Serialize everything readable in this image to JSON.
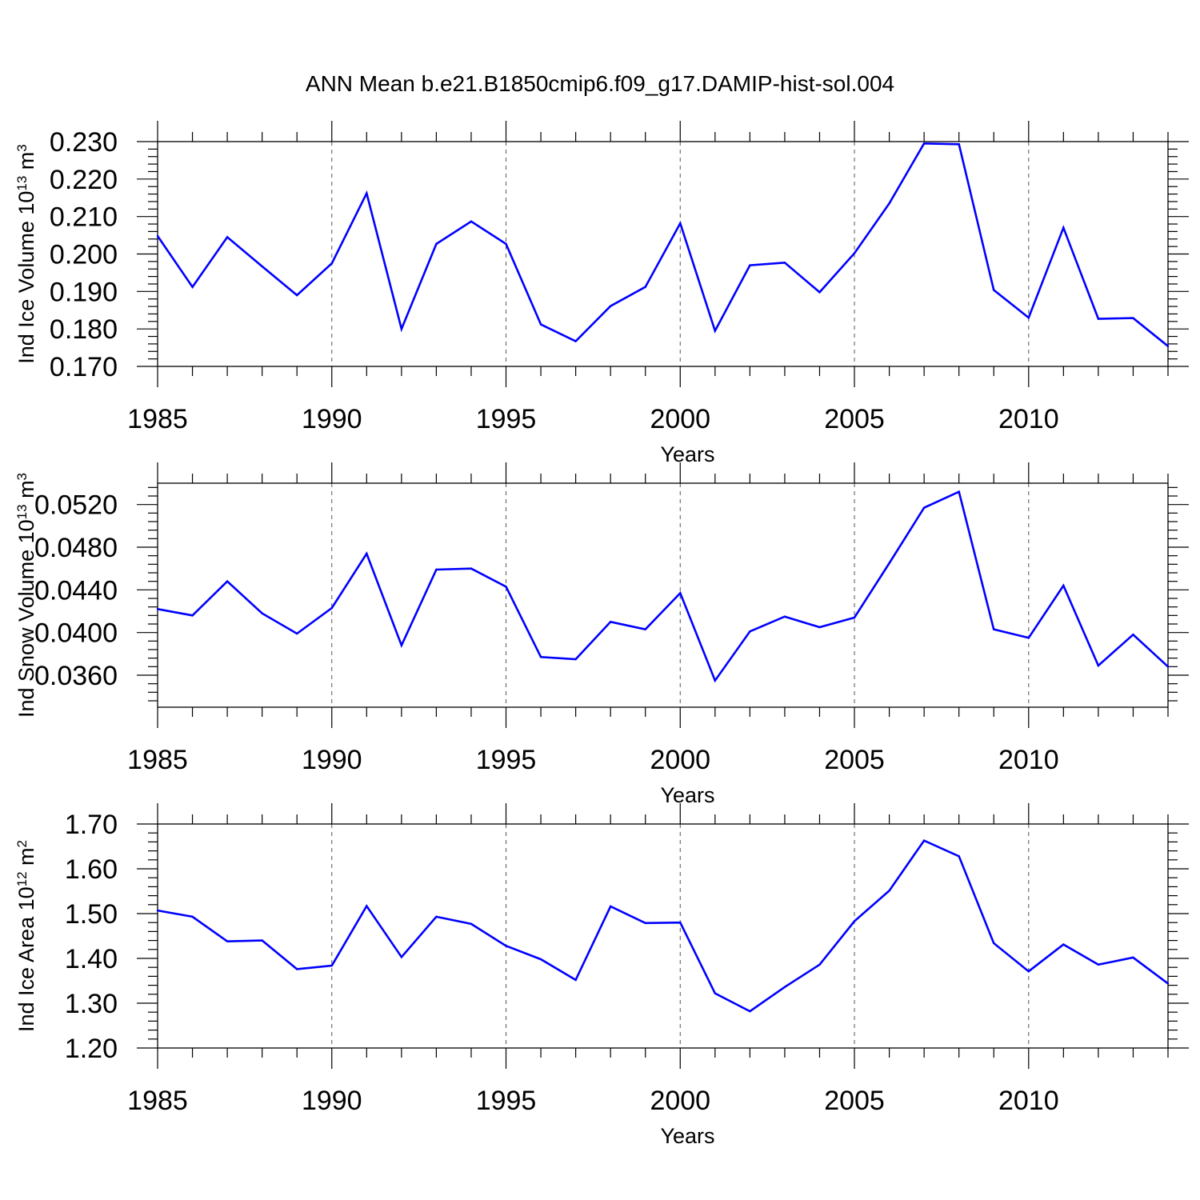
{
  "figure_title": "ANN Mean b.e21.B1850cmip6.f09_g17.DAMIP-hist-sol.004",
  "colors": {
    "series": "#0000ff",
    "axis": "#000000",
    "grid": "#555555"
  },
  "chart_data": [
    {
      "type": "line",
      "title": "ANN Mean b.e21.B1850cmip6.f09_g17.DAMIP-hist-sol.004",
      "xlabel": "Years",
      "ylabel": {
        "text": "Ind Ice Volume 10",
        "exp": "13",
        "unit": " m",
        "unit_exp": "3"
      },
      "x": [
        1985,
        1986,
        1987,
        1988,
        1989,
        1990,
        1991,
        1992,
        1993,
        1994,
        1995,
        1996,
        1997,
        1998,
        1999,
        2000,
        2001,
        2002,
        2003,
        2004,
        2005,
        2006,
        2007,
        2008,
        2009,
        2010,
        2011,
        2012,
        2013,
        2014
      ],
      "values": [
        0.2048,
        0.1912,
        0.2045,
        0.1967,
        0.189,
        0.1975,
        0.2162,
        0.18,
        0.2027,
        0.2087,
        0.2027,
        0.1812,
        0.1767,
        0.1861,
        0.1912,
        0.2082,
        0.1795,
        0.197,
        0.1977,
        0.1898,
        0.2002,
        0.2135,
        0.2295,
        0.2293,
        0.1904,
        0.183,
        0.207,
        0.1827,
        0.1829,
        0.1754
      ],
      "xlim": [
        1985,
        2014
      ],
      "ylim": [
        0.17,
        0.23
      ],
      "xticks": [
        1985,
        1990,
        1995,
        2000,
        2005,
        2010
      ],
      "yticks": [
        0.17,
        0.18,
        0.19,
        0.2,
        0.21,
        0.22,
        0.23
      ],
      "ytick_labels": [
        "0.170",
        "0.180",
        "0.190",
        "0.200",
        "0.210",
        "0.220",
        "0.230"
      ],
      "grid": "vertical dashed at major x ticks"
    },
    {
      "type": "line",
      "xlabel": "Years",
      "ylabel": {
        "text": "Ind Snow Volume 10",
        "exp": "13",
        "unit": " m",
        "unit_exp": "3"
      },
      "x": [
        1985,
        1986,
        1987,
        1988,
        1989,
        1990,
        1991,
        1992,
        1993,
        1994,
        1995,
        1996,
        1997,
        1998,
        1999,
        2000,
        2001,
        2002,
        2003,
        2004,
        2005,
        2006,
        2007,
        2008,
        2009,
        2010,
        2011,
        2012,
        2013,
        2014
      ],
      "values": [
        0.0422,
        0.0416,
        0.0448,
        0.0418,
        0.0399,
        0.0423,
        0.0474,
        0.0388,
        0.0459,
        0.046,
        0.0443,
        0.0377,
        0.0375,
        0.041,
        0.0403,
        0.0437,
        0.0355,
        0.0401,
        0.0415,
        0.0405,
        0.0414,
        0.0465,
        0.0517,
        0.0532,
        0.0403,
        0.0395,
        0.0444,
        0.0369,
        0.0398,
        0.0368
      ],
      "xlim": [
        1985,
        2014
      ],
      "ylim": [
        0.033,
        0.054
      ],
      "xticks": [
        1985,
        1990,
        1995,
        2000,
        2005,
        2010
      ],
      "yticks": [
        0.036,
        0.04,
        0.044,
        0.048,
        0.052
      ],
      "ytick_labels": [
        "0.0360",
        "0.0400",
        "0.0440",
        "0.0480",
        "0.0520"
      ],
      "grid": "vertical dashed at major x ticks"
    },
    {
      "type": "line",
      "xlabel": "Years",
      "ylabel": {
        "text": "Ind Ice Area 10",
        "exp": "12",
        "unit": " m",
        "unit_exp": "2"
      },
      "x": [
        1985,
        1986,
        1987,
        1988,
        1989,
        1990,
        1991,
        1992,
        1993,
        1994,
        1995,
        1996,
        1997,
        1998,
        1999,
        2000,
        2001,
        2002,
        2003,
        2004,
        2005,
        2006,
        2007,
        2008,
        2009,
        2010,
        2011,
        2012,
        2013,
        2014
      ],
      "values": [
        1.507,
        1.493,
        1.438,
        1.44,
        1.376,
        1.384,
        1.517,
        1.403,
        1.493,
        1.477,
        1.428,
        1.398,
        1.352,
        1.516,
        1.479,
        1.48,
        1.322,
        1.282,
        1.336,
        1.386,
        1.483,
        1.551,
        1.663,
        1.628,
        1.434,
        1.371,
        1.431,
        1.386,
        1.402,
        1.344
      ],
      "xlim": [
        1985,
        2014
      ],
      "ylim": [
        1.2,
        1.7
      ],
      "xticks": [
        1985,
        1990,
        1995,
        2000,
        2005,
        2010
      ],
      "yticks": [
        1.2,
        1.3,
        1.4,
        1.5,
        1.6,
        1.7
      ],
      "ytick_labels": [
        "1.20",
        "1.30",
        "1.40",
        "1.50",
        "1.60",
        "1.70"
      ],
      "grid": "vertical dashed at major x ticks"
    }
  ]
}
